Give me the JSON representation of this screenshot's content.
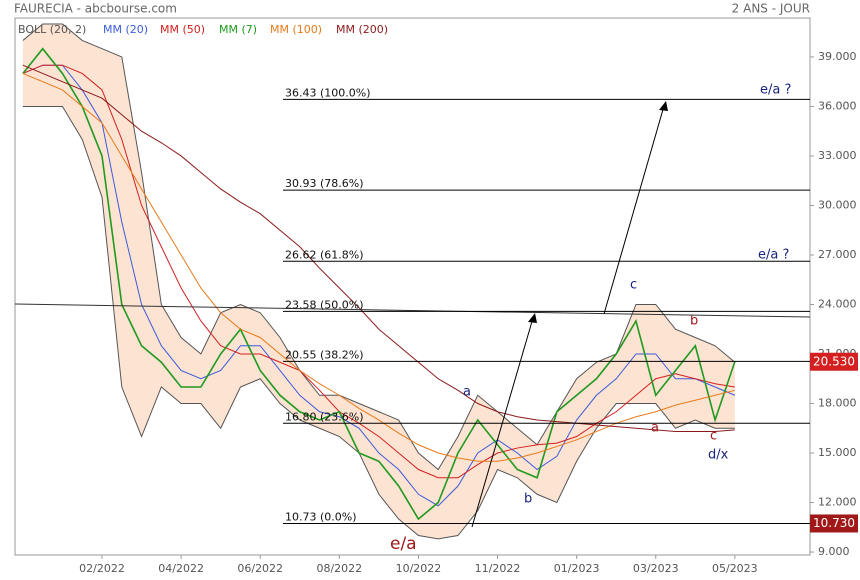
{
  "chart_data": {
    "type": "line",
    "title": "FAURECIA - abcbourse.com",
    "subtitle": "2 ANS - JOUR",
    "x": [
      -1,
      -0.5,
      0,
      0.5,
      1,
      1.5,
      2,
      2.5,
      3,
      3.5,
      4,
      4.5,
      5,
      5.5,
      6,
      6.5,
      7,
      7.5,
      8,
      8.5,
      9,
      9.5,
      10,
      10.5,
      11,
      11.5,
      12,
      12.5,
      13,
      13.5,
      14,
      14.5,
      15,
      15.5,
      16,
      16.5,
      17
    ],
    "xlim": [
      -1.2,
      18.9
    ],
    "xticks": [
      {
        "value": 1,
        "label": "02/2022"
      },
      {
        "value": 3,
        "label": "04/2022"
      },
      {
        "value": 5,
        "label": "06/2022"
      },
      {
        "value": 7,
        "label": "08/2022"
      },
      {
        "value": 9,
        "label": "10/2022"
      },
      {
        "value": 11,
        "label": "11/2022"
      },
      {
        "value": 13,
        "label": "01/2023"
      },
      {
        "value": 15,
        "label": "03/2023"
      },
      {
        "value": 17,
        "label": "05/2023"
      }
    ],
    "ylim": [
      8.82,
      41.36
    ],
    "yticks": [
      {
        "value": 9,
        "label": "9.000"
      },
      {
        "value": 12,
        "label": "12.000"
      },
      {
        "value": 15,
        "label": "15.000"
      },
      {
        "value": 18,
        "label": "18.000"
      },
      {
        "value": 21,
        "label": "21.000"
      },
      {
        "value": 24,
        "label": "24.000"
      },
      {
        "value": 27,
        "label": "27.000"
      },
      {
        "value": 30,
        "label": "30.000"
      },
      {
        "value": 33,
        "label": "33.000"
      },
      {
        "value": 36,
        "label": "36.000"
      },
      {
        "value": 39,
        "label": "39.000"
      }
    ],
    "bollinger": {
      "name": "BOLL (20, 2)",
      "color": "#555555",
      "fill": "#fde3d2",
      "upper": [
        40,
        41,
        41,
        40,
        39.5,
        39,
        32,
        24,
        22,
        21,
        23.5,
        24,
        23.5,
        22,
        20,
        18.5,
        18.5,
        18,
        17.5,
        17,
        15,
        14,
        16,
        18.5,
        17.5,
        16.5,
        15.5,
        17.5,
        19.5,
        20.5,
        21,
        24,
        24,
        22.5,
        22,
        21.5,
        20.5
      ],
      "lower": [
        36,
        36,
        36,
        34,
        30.5,
        19,
        16,
        19,
        18,
        18,
        16.5,
        19,
        19.5,
        18,
        17,
        16.5,
        16,
        15,
        12.5,
        11,
        10,
        9.8,
        10,
        11.5,
        14,
        13.5,
        12.5,
        12,
        14.5,
        16.5,
        18,
        18,
        18,
        16.5,
        17,
        16.5,
        16.5
      ]
    },
    "series": [
      {
        "name": "MM (20)",
        "color": "#3b5bdb",
        "values": [
          38,
          38.5,
          38.5,
          37,
          35,
          29,
          24,
          21.5,
          20,
          19.5,
          20,
          21.5,
          21.5,
          20,
          18.5,
          17.5,
          17.2,
          16.5,
          15,
          14,
          12.5,
          11.8,
          13,
          15,
          15.8,
          15,
          14,
          14.8,
          17,
          18.5,
          19.5,
          21,
          21,
          19.5,
          19.5,
          19,
          18.5
        ]
      },
      {
        "name": "MM (50)",
        "color": "#d42020",
        "values": [
          38,
          38.5,
          38.5,
          38,
          37,
          34,
          30,
          27.5,
          25,
          23,
          21.5,
          21,
          21,
          20.5,
          20,
          18.8,
          17.5,
          16.8,
          16,
          15,
          14,
          13.5,
          13.5,
          14.3,
          15,
          15.3,
          15.5,
          15.6,
          16,
          16.8,
          17.5,
          18.5,
          19.5,
          19.8,
          19.5,
          19.2,
          19
        ]
      },
      {
        "name": "MM (7)",
        "color": "#1f9a1f",
        "values": [
          38,
          39.5,
          38,
          36,
          33,
          24,
          21.5,
          20.5,
          19,
          19,
          21,
          22.5,
          20,
          18.5,
          17.5,
          17,
          17.5,
          15,
          14.5,
          13,
          11,
          12,
          15,
          17,
          15.5,
          14,
          13.5,
          17.5,
          18.5,
          19.5,
          21,
          23,
          18.5,
          20,
          21.5,
          17,
          20.53
        ]
      },
      {
        "name": "MM (100)",
        "color": "#e87a1a",
        "values": [
          38,
          37.5,
          37,
          36,
          35,
          33,
          31,
          29,
          27,
          25,
          23.5,
          22.5,
          22,
          21,
          20,
          19.2,
          18.5,
          17.7,
          17,
          16.2,
          15.5,
          15,
          14.7,
          14.5,
          14.5,
          14.7,
          15,
          15.4,
          15.8,
          16.3,
          16.8,
          17.2,
          17.5,
          17.9,
          18.2,
          18.5,
          18.8
        ]
      },
      {
        "name": "MM (200)",
        "color": "#8b1a1a",
        "values": [
          38.5,
          38,
          37.5,
          37,
          36.5,
          35.5,
          34.5,
          33.8,
          33,
          32,
          31,
          30.2,
          29.5,
          28.5,
          27.5,
          26.2,
          25,
          23.8,
          22.5,
          21.5,
          20.5,
          19.5,
          18.8,
          18,
          17.5,
          17.2,
          17,
          16.9,
          16.8,
          16.7,
          16.6,
          16.5,
          16.4,
          16.3,
          16.3,
          16.3,
          16.4
        ]
      }
    ],
    "fib_levels": [
      {
        "value": 36.43,
        "label": "36.43  (100.0%)"
      },
      {
        "value": 30.93,
        "label": "30.93  (78.6%)"
      },
      {
        "value": 26.62,
        "label": "26.62  (61.8%)"
      },
      {
        "value": 23.58,
        "label": "23.58  (50.0%)"
      },
      {
        "value": 20.55,
        "label": "20.55  (38.2%)"
      },
      {
        "value": 16.8,
        "label": "16.80  (23.6%)"
      },
      {
        "value": 10.73,
        "label": "10.73  (0.0%)"
      }
    ],
    "last_price": {
      "value": 20.53,
      "label": "20.530"
    },
    "low_price": {
      "value": 10.73,
      "label": "10.730"
    },
    "annotations": [
      "e/a ?",
      "e/a ?",
      "a",
      "b",
      "c",
      "a",
      "b",
      "c",
      "d/x",
      "e/a"
    ]
  }
}
